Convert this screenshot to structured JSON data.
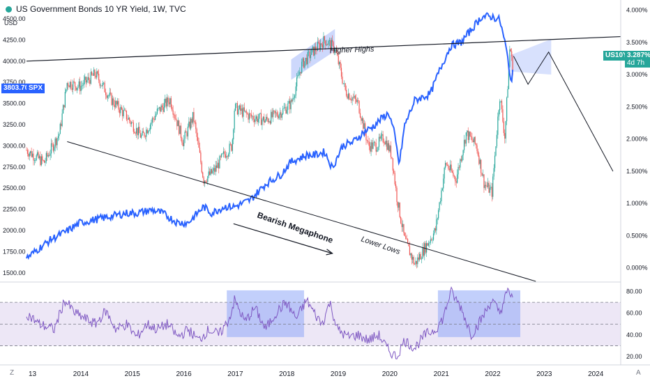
{
  "header": {
    "title": "US Government Bonds 10 YR Yield, 1W, TVC",
    "currency": "USD"
  },
  "badges": {
    "spx_value": "3803.70",
    "spx_label": "SPX",
    "us10y_label": "US10Y",
    "us10y_value": "3.287%",
    "us10y_time": "4d 7h"
  },
  "corner": {
    "left": "Z",
    "right": "A"
  },
  "colors": {
    "bond_line": "#2962ff",
    "candle_up": "#26a69a",
    "candle_down": "#ef5350",
    "highlight": "#90a8f8",
    "rsi_line": "#7e57c2",
    "rsi_band": "#ede7f6",
    "trendline": "#131722"
  },
  "annotations": {
    "higher_highs": "Higher Highs",
    "lower_lows": "Lower Lows",
    "bearish_megaphone": "Bearish Megaphone"
  },
  "chart_data": [
    {
      "type": "line",
      "name": "US10Y",
      "title": "US Government Bonds 10 YR Yield, 1W, TVC",
      "y_unit": "%",
      "yticks": [
        "4.000%",
        "3.500%",
        "3.000%",
        "2.500%",
        "2.000%",
        "1.500%",
        "1.000%",
        "0.500%",
        "0.000%"
      ],
      "ylim": [
        -0.1,
        4.05
      ],
      "x": [
        2012.96,
        2013.2,
        2013.45,
        2013.7,
        2014.0,
        2014.3,
        2014.6,
        2014.9,
        2015.1,
        2015.4,
        2015.6,
        2015.9,
        2016.1,
        2016.4,
        2016.55,
        2016.8,
        2017.0,
        2017.3,
        2017.6,
        2017.9,
        2018.1,
        2018.4,
        2018.55,
        2018.75,
        2018.9,
        2019.1,
        2019.3,
        2019.5,
        2019.7,
        2019.9,
        2020.0,
        2020.1,
        2020.2,
        2020.3,
        2020.5,
        2020.8,
        2021.0,
        2021.2,
        2021.4,
        2021.6,
        2021.8,
        2022.0,
        2022.15,
        2022.25,
        2022.32,
        2022.38,
        2022.42
      ],
      "y": [
        0.15,
        0.3,
        0.45,
        0.55,
        0.7,
        0.75,
        0.8,
        0.85,
        0.85,
        0.9,
        0.85,
        0.7,
        0.7,
        0.95,
        0.85,
        0.95,
        0.95,
        1.05,
        1.3,
        1.45,
        1.65,
        1.75,
        1.75,
        1.8,
        1.55,
        1.9,
        1.95,
        2.1,
        2.2,
        2.35,
        2.4,
        2.1,
        1.6,
        2.2,
        2.6,
        2.7,
        3.1,
        3.45,
        3.5,
        3.7,
        3.9,
        3.9,
        3.85,
        3.5,
        3.2,
        2.8,
        3.287
      ],
      "projection": {
        "x": [
          2022.42,
          2022.7,
          2023.1,
          2024.35
        ],
        "y": [
          3.287,
          2.85,
          3.35,
          1.5
        ]
      }
    },
    {
      "type": "candlestick",
      "name": "SPX",
      "y_unit": "USD",
      "yticks": [
        4500,
        4250,
        4000,
        3750,
        3500,
        3250,
        3000,
        2750,
        2500,
        2250,
        2000,
        1750,
        1500
      ],
      "ylim": [
        1400,
        4640
      ],
      "last_value": 3803.7,
      "x": [
        2012.96,
        2013.3,
        2013.6,
        2013.75,
        2014.0,
        2014.3,
        2014.6,
        2014.9,
        2015.2,
        2015.5,
        2015.75,
        2016.0,
        2016.2,
        2016.4,
        2016.6,
        2016.8,
        2016.95,
        2017.0,
        2017.3,
        2017.6,
        2017.9,
        2018.1,
        2018.3,
        2018.5,
        2018.75,
        2018.95,
        2019.15,
        2019.4,
        2019.6,
        2019.75,
        2019.9,
        2020.05,
        2020.15,
        2020.3,
        2020.5,
        2020.7,
        2020.9,
        2021.1,
        2021.3,
        2021.5,
        2021.7,
        2021.85,
        2022.0,
        2022.15,
        2022.25,
        2022.35,
        2022.42
      ],
      "y": [
        2950,
        2800,
        3150,
        3750,
        3700,
        3850,
        3550,
        3350,
        3100,
        3400,
        3550,
        3050,
        3350,
        2600,
        2700,
        2900,
        3000,
        3450,
        3350,
        3300,
        3400,
        3500,
        3950,
        4100,
        4250,
        4150,
        3650,
        3500,
        3000,
        3000,
        3100,
        2900,
        2400,
        1900,
        1600,
        1800,
        2000,
        2800,
        2600,
        3150,
        3000,
        2550,
        2450,
        3600,
        3100,
        4200,
        3803.7
      ]
    },
    {
      "type": "line",
      "name": "RSI",
      "yticks": [
        80,
        60,
        40,
        20
      ],
      "ylim": [
        15,
        88
      ],
      "bands": [
        70,
        50,
        30
      ],
      "x": [
        2012.96,
        2013.2,
        2013.5,
        2013.7,
        2013.9,
        2014.1,
        2014.3,
        2014.5,
        2014.7,
        2014.9,
        2015.1,
        2015.3,
        2015.5,
        2015.7,
        2015.9,
        2016.1,
        2016.3,
        2016.5,
        2016.7,
        2016.9,
        2017.0,
        2017.2,
        2017.4,
        2017.6,
        2017.8,
        2018.0,
        2018.2,
        2018.4,
        2018.55,
        2018.7,
        2018.85,
        2019.0,
        2019.2,
        2019.4,
        2019.6,
        2019.8,
        2020.0,
        2020.15,
        2020.3,
        2020.5,
        2020.7,
        2020.9,
        2021.05,
        2021.2,
        2021.4,
        2021.6,
        2021.8,
        2022.0,
        2022.15,
        2022.3,
        2022.42
      ],
      "y": [
        60,
        50,
        45,
        72,
        60,
        55,
        50,
        62,
        45,
        50,
        38,
        50,
        45,
        50,
        38,
        45,
        35,
        45,
        40,
        55,
        72,
        52,
        65,
        45,
        60,
        70,
        55,
        72,
        60,
        50,
        70,
        45,
        38,
        40,
        35,
        40,
        25,
        20,
        35,
        28,
        40,
        45,
        55,
        80,
        65,
        40,
        55,
        72,
        60,
        80,
        75
      ],
      "highlight_ranges": [
        [
          2016.85,
          2018.35
        ],
        [
          2020.95,
          2022.55
        ]
      ]
    }
  ],
  "x_axis": {
    "ticks": [
      "13",
      "2014",
      "2015",
      "2016",
      "2017",
      "2018",
      "2019",
      "2020",
      "2021",
      "2022",
      "2023",
      "2024"
    ]
  }
}
